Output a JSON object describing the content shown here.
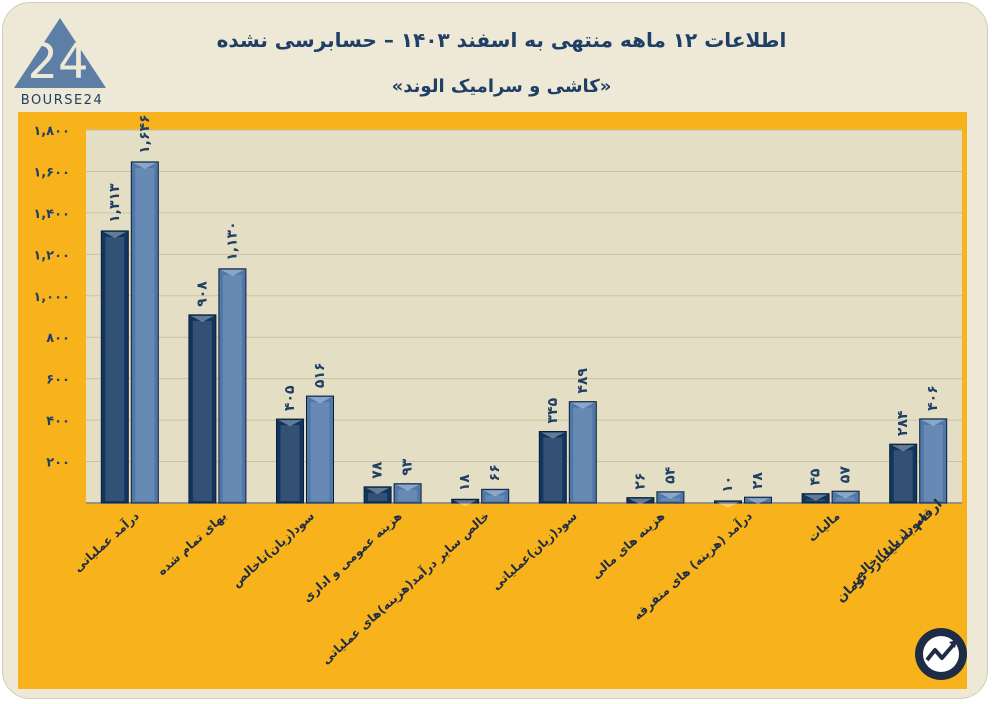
{
  "logo": {
    "mark": "24",
    "text": "BOURSE24"
  },
  "header": {
    "title": "اطلاعات ۱۲ ماهه منتهی به اسفند ۱۴۰۳ – حسابرسی نشده",
    "subtitle": "«کاشی و سرامیک الوند»"
  },
  "note": "ارقام به میلیارد تومان",
  "colors": {
    "series_dark": "#12355f",
    "series_light": "#4f77a8",
    "frame": "#f7b21c",
    "plot_bg": "#e4dec4",
    "text": "#1f3f66"
  },
  "chart_data": {
    "type": "bar",
    "title": "اطلاعات ۱۲ ماهه منتهی به اسفند ۱۴۰۳ – حسابرسی نشده",
    "ylim": [
      0,
      1800
    ],
    "yticks": [
      200,
      400,
      600,
      800,
      1000,
      1200,
      1400,
      1600,
      1800
    ],
    "ytick_labels": [
      "۲۰۰",
      "۴۰۰",
      "۶۰۰",
      "۸۰۰",
      "۱,۰۰۰",
      "۱,۲۰۰",
      "۱,۴۰۰",
      "۱,۶۰۰",
      "۱,۸۰۰"
    ],
    "grid": true,
    "categories": [
      "درآمد عملیاتی",
      "بهای تمام شده",
      "سود(زیان)ناخالص",
      "هزینه عمومی و اداری",
      "خالص سایر درآمد(هزینه)های عملیاتی",
      "سود(زیان)عملیاتی",
      "هزینه های مالی",
      "درآمد (هزینه) های متفرقه",
      "مالیات",
      "سود(زیان) خالص"
    ],
    "series": [
      {
        "values": [
          1313,
          908,
          405,
          78,
          18,
          345,
          26,
          10,
          45,
          284
        ],
        "labels": [
          "۱,۳۱۳",
          "۹۰۸",
          "۴۰۵",
          "۷۸",
          "۱۸",
          "۳۴۵",
          "۲۶",
          "۱۰",
          "۴۵",
          "۲۸۴"
        ]
      },
      {
        "values": [
          1646,
          1130,
          516,
          93,
          66,
          489,
          54,
          28,
          57,
          406
        ],
        "labels": [
          "۱,۶۴۶",
          "۱,۱۳۰",
          "۵۱۶",
          "۹۳",
          "۶۶",
          "۴۸۹",
          "۵۴",
          "۲۸",
          "۵۷",
          "۴۰۶"
        ]
      }
    ]
  }
}
